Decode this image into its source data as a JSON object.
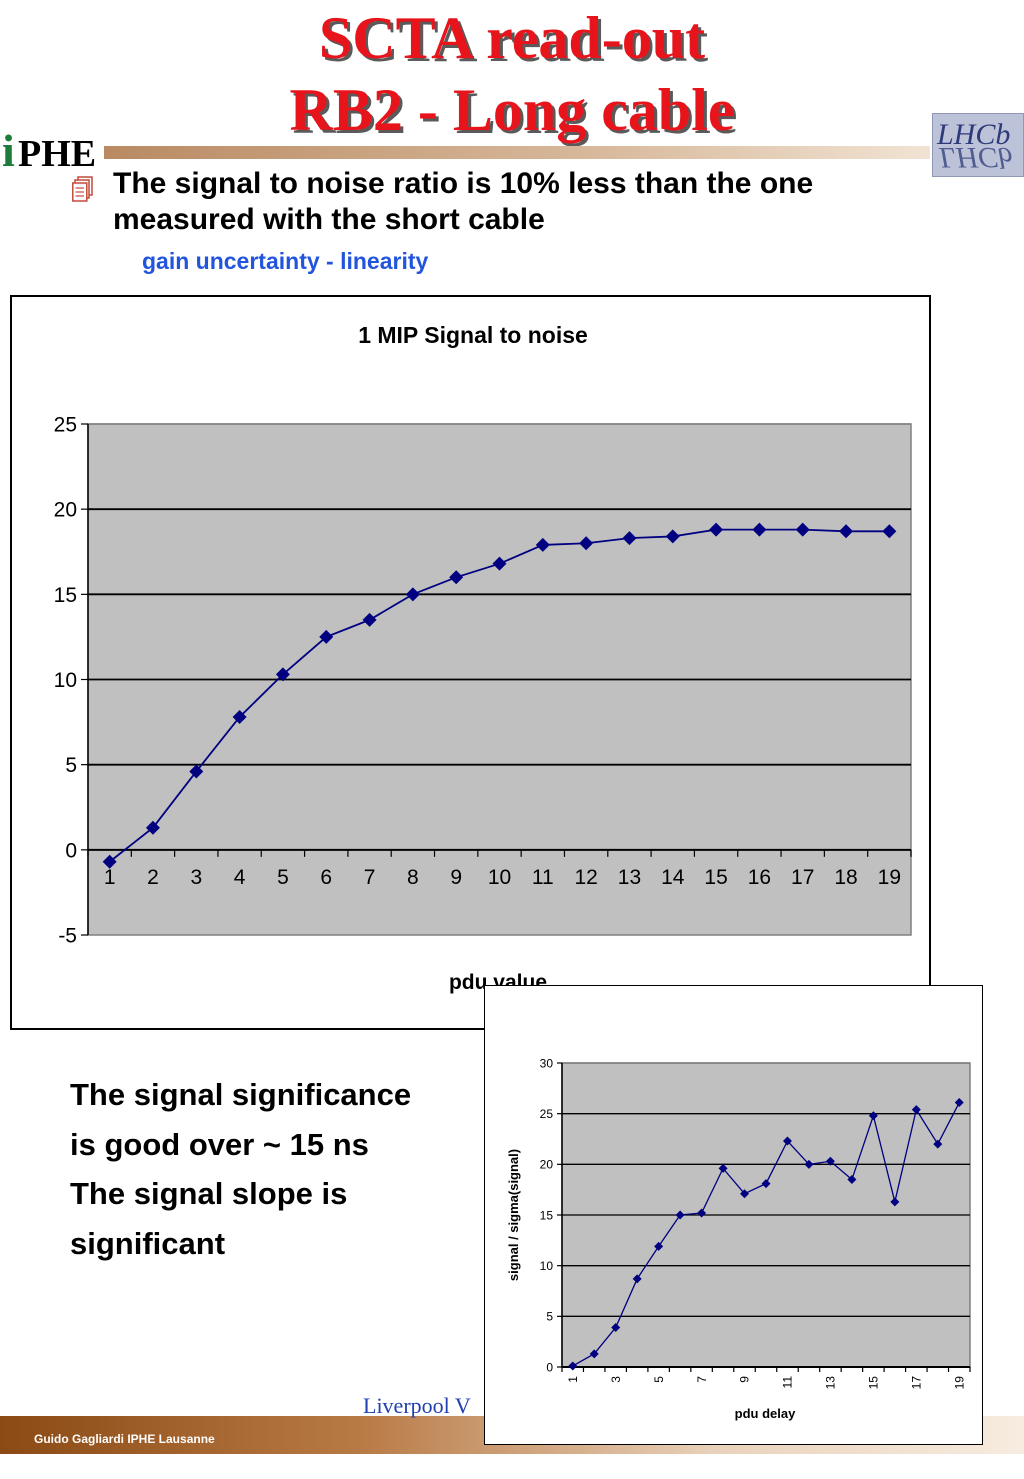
{
  "slide": {
    "title_line1": "SCTA read-out",
    "title_line2": "RB2 - Long cable",
    "bullet": "The signal to noise ratio is 10% less than the one measured with the short cable",
    "subnote": "gain uncertainty - linearity",
    "body_lines": [
      "The signal significance",
      "is good over ~ 15 ns",
      "The signal slope is",
      "significant"
    ],
    "footer": "Guido Gagliardi  IPHE Lausanne",
    "footer_partial": "Liverpool V",
    "logos": {
      "left": {
        "mark": "i",
        "word": "PHE"
      },
      "right": "LHCb"
    }
  },
  "colors": {
    "title": "#e8141c",
    "series": "#000080",
    "plot_bg": "#c0c0c0",
    "subnote": "#2255dd"
  },
  "chart_data": [
    {
      "type": "line",
      "title": "1 MIP Signal to noise",
      "xlabel": "pdu value",
      "ylabel": "",
      "x": [
        1,
        2,
        3,
        4,
        5,
        6,
        7,
        8,
        9,
        10,
        11,
        12,
        13,
        14,
        15,
        16,
        17,
        18,
        19
      ],
      "values": [
        -0.7,
        1.3,
        4.6,
        7.8,
        10.3,
        12.5,
        13.5,
        15.0,
        16.0,
        16.8,
        17.9,
        18.0,
        18.3,
        18.4,
        18.8,
        18.8,
        18.8,
        18.7,
        18.7
      ],
      "ylim": [
        -5,
        25
      ],
      "yticks": [
        -5,
        0,
        5,
        10,
        15,
        20,
        25
      ],
      "grid": "horizontal",
      "legend": "none",
      "markers": "diamond"
    },
    {
      "type": "line",
      "title": "",
      "xlabel": "pdu delay",
      "ylabel": "signal / sigma(signal)",
      "x": [
        1,
        2,
        3,
        4,
        5,
        6,
        7,
        8,
        9,
        10,
        11,
        12,
        13,
        14,
        15,
        16,
        17,
        18,
        19
      ],
      "xtick_labels": [
        "1",
        "3",
        "5",
        "7",
        "9",
        "11",
        "13",
        "15",
        "17",
        "19"
      ],
      "values": [
        0.1,
        1.3,
        3.9,
        8.7,
        11.9,
        15.0,
        15.2,
        19.6,
        17.1,
        18.1,
        22.3,
        20.0,
        20.3,
        18.5,
        24.8,
        16.3,
        25.4,
        22.0,
        26.1
      ],
      "ylim": [
        0,
        30
      ],
      "yticks": [
        0,
        5,
        10,
        15,
        20,
        25,
        30
      ],
      "grid": "horizontal",
      "legend": "none",
      "markers": "diamond"
    }
  ]
}
